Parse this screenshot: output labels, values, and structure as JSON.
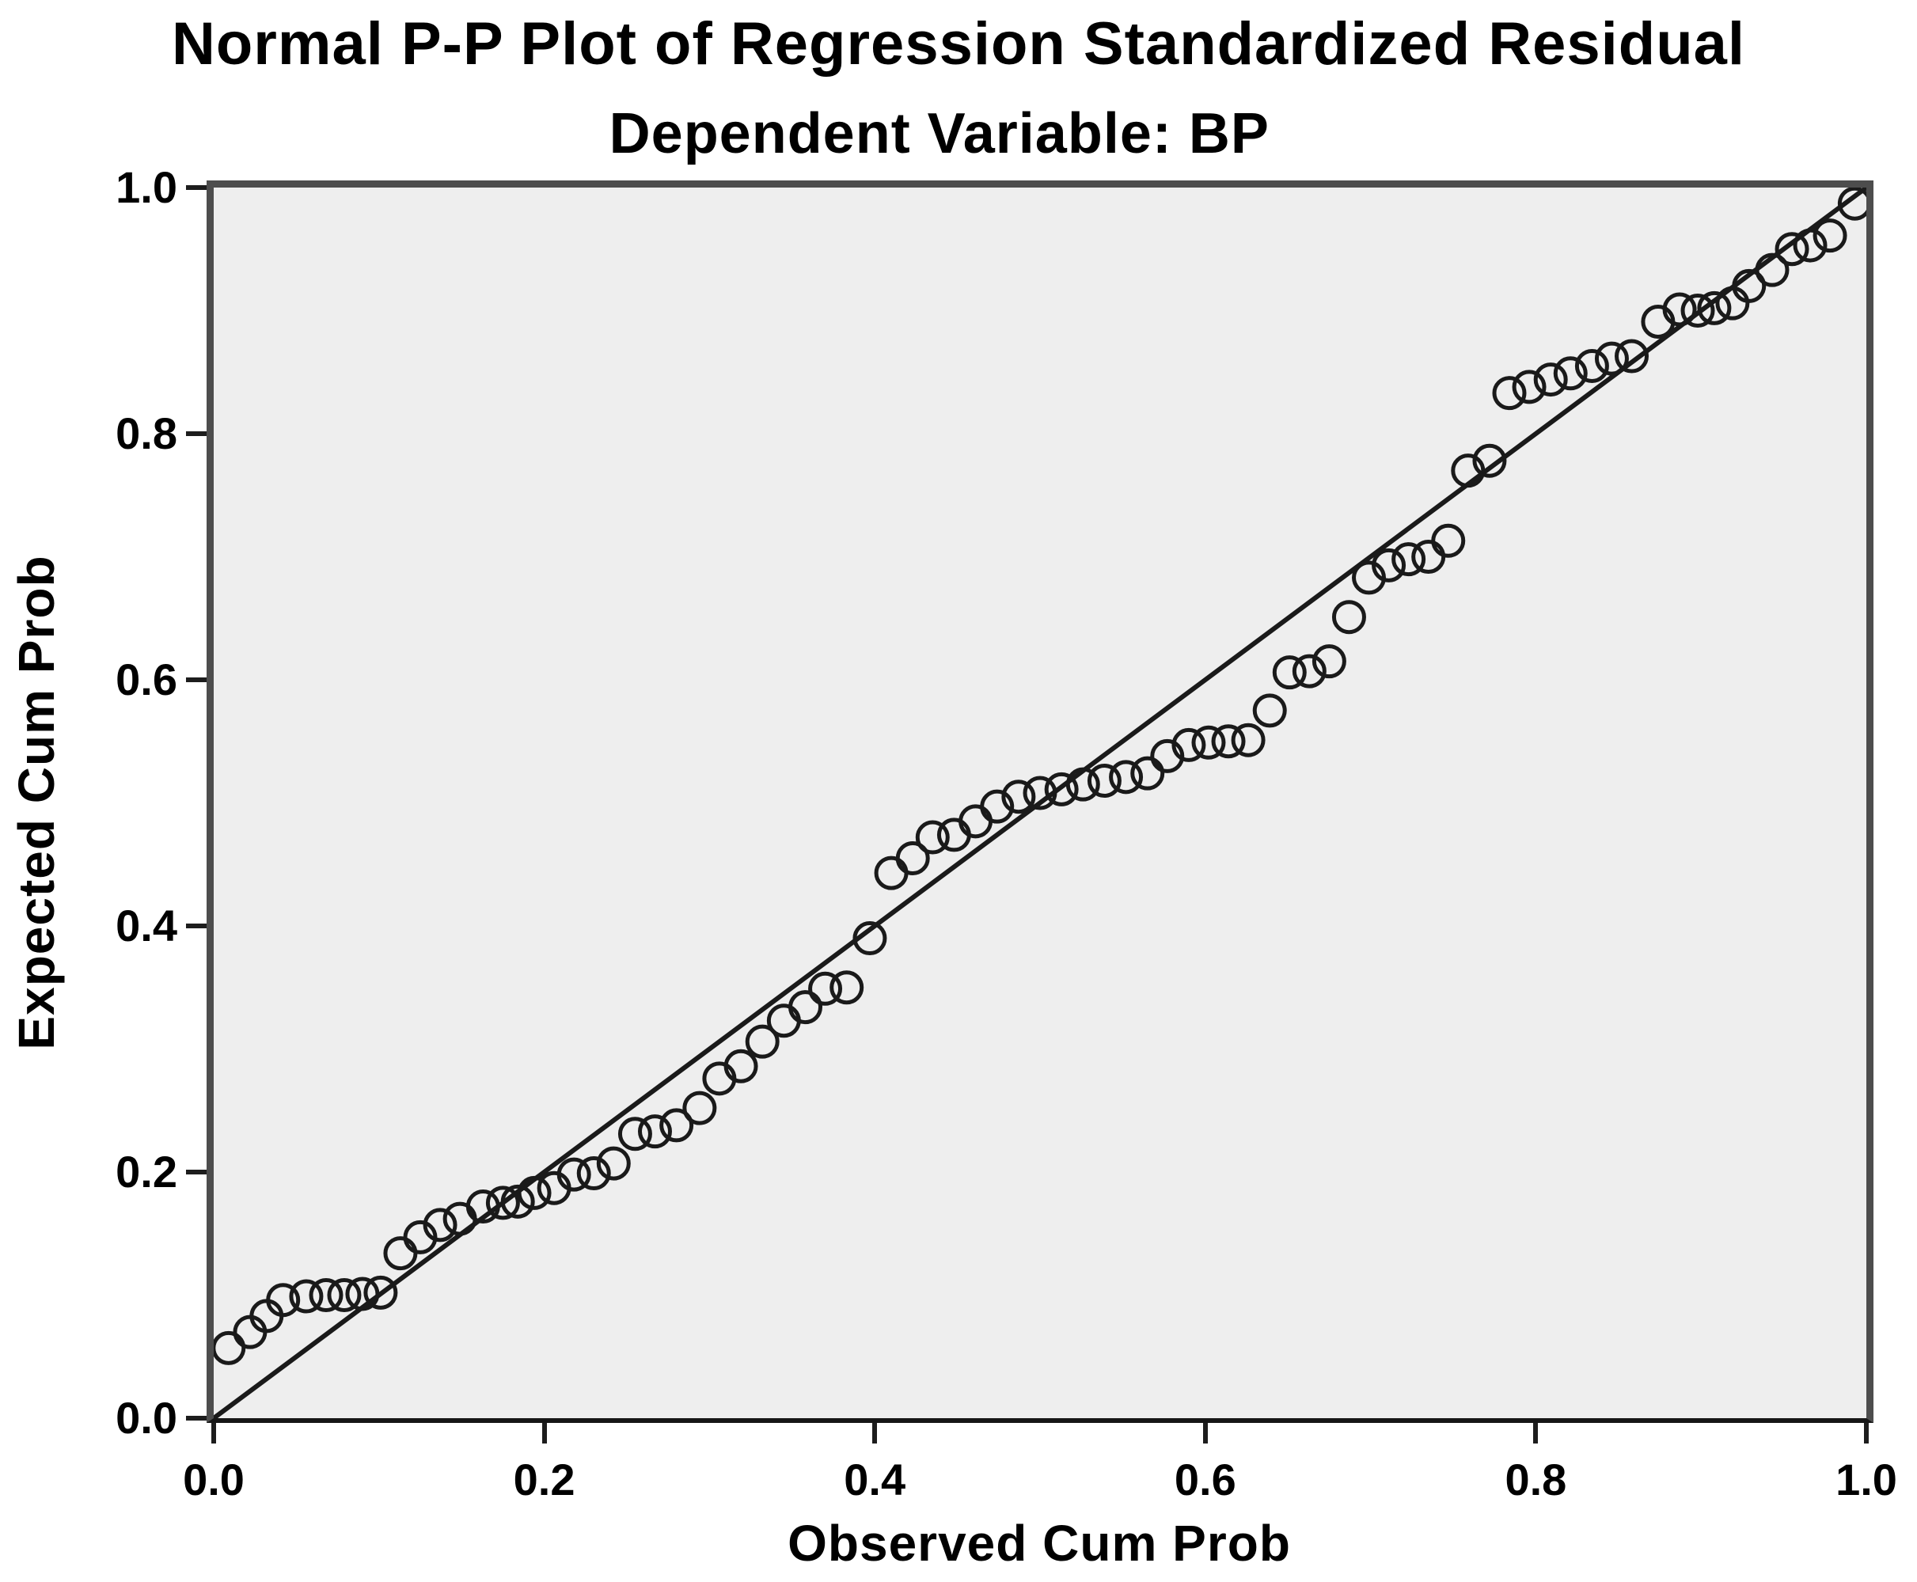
{
  "chart_data": {
    "type": "scatter",
    "title": "Normal P-P Plot of Regression Standardized Residual",
    "subtitle": "Dependent Variable: BP",
    "xlabel": "Observed Cum Prob",
    "ylabel": "Expected Cum Prob",
    "xlim": [
      0.0,
      1.0
    ],
    "ylim": [
      0.0,
      1.0
    ],
    "x_ticks": [
      0.0,
      0.2,
      0.4,
      0.6,
      0.8,
      1.0
    ],
    "y_ticks": [
      0.0,
      0.2,
      0.4,
      0.6,
      0.8,
      1.0
    ],
    "grid": false,
    "legend": null,
    "marker": {
      "shape": "open-circle",
      "radius_px": 19,
      "stroke_px": 5
    },
    "reference_line": {
      "from": [
        0.0,
        0.0
      ],
      "to": [
        1.0,
        1.0
      ]
    },
    "colors": {
      "plot_background": "#eeeeee",
      "frame": "#4d4d4d",
      "marker": "#1a1a1a",
      "reference_line": "#1a1a1a",
      "text": "#000000"
    },
    "points": [
      [
        0.009,
        0.057
      ],
      [
        0.022,
        0.07
      ],
      [
        0.032,
        0.083
      ],
      [
        0.042,
        0.096
      ],
      [
        0.056,
        0.099
      ],
      [
        0.068,
        0.1
      ],
      [
        0.079,
        0.1
      ],
      [
        0.09,
        0.101
      ],
      [
        0.101,
        0.102
      ],
      [
        0.113,
        0.134
      ],
      [
        0.125,
        0.147
      ],
      [
        0.137,
        0.157
      ],
      [
        0.149,
        0.162
      ],
      [
        0.163,
        0.172
      ],
      [
        0.175,
        0.175
      ],
      [
        0.184,
        0.176
      ],
      [
        0.194,
        0.183
      ],
      [
        0.206,
        0.187
      ],
      [
        0.218,
        0.198
      ],
      [
        0.23,
        0.199
      ],
      [
        0.242,
        0.207
      ],
      [
        0.255,
        0.231
      ],
      [
        0.267,
        0.233
      ],
      [
        0.28,
        0.238
      ],
      [
        0.294,
        0.252
      ],
      [
        0.306,
        0.276
      ],
      [
        0.319,
        0.286
      ],
      [
        0.332,
        0.306
      ],
      [
        0.345,
        0.323
      ],
      [
        0.358,
        0.334
      ],
      [
        0.37,
        0.349
      ],
      [
        0.383,
        0.35
      ],
      [
        0.397,
        0.39
      ],
      [
        0.41,
        0.443
      ],
      [
        0.423,
        0.455
      ],
      [
        0.435,
        0.472
      ],
      [
        0.448,
        0.474
      ],
      [
        0.461,
        0.485
      ],
      [
        0.474,
        0.497
      ],
      [
        0.487,
        0.505
      ],
      [
        0.5,
        0.508
      ],
      [
        0.513,
        0.511
      ],
      [
        0.526,
        0.515
      ],
      [
        0.539,
        0.518
      ],
      [
        0.552,
        0.521
      ],
      [
        0.565,
        0.524
      ],
      [
        0.577,
        0.538
      ],
      [
        0.59,
        0.547
      ],
      [
        0.602,
        0.549
      ],
      [
        0.614,
        0.55
      ],
      [
        0.626,
        0.551
      ],
      [
        0.639,
        0.575
      ],
      [
        0.651,
        0.606
      ],
      [
        0.663,
        0.607
      ],
      [
        0.675,
        0.615
      ],
      [
        0.687,
        0.651
      ],
      [
        0.699,
        0.683
      ],
      [
        0.711,
        0.693
      ],
      [
        0.723,
        0.698
      ],
      [
        0.735,
        0.7
      ],
      [
        0.747,
        0.713
      ],
      [
        0.759,
        0.77
      ],
      [
        0.772,
        0.778
      ],
      [
        0.784,
        0.833
      ],
      [
        0.796,
        0.838
      ],
      [
        0.809,
        0.844
      ],
      [
        0.821,
        0.849
      ],
      [
        0.834,
        0.855
      ],
      [
        0.846,
        0.861
      ],
      [
        0.858,
        0.863
      ],
      [
        0.874,
        0.891
      ],
      [
        0.887,
        0.901
      ],
      [
        0.898,
        0.9
      ],
      [
        0.908,
        0.902
      ],
      [
        0.919,
        0.906
      ],
      [
        0.929,
        0.92
      ],
      [
        0.943,
        0.933
      ],
      [
        0.955,
        0.95
      ],
      [
        0.966,
        0.953
      ],
      [
        0.978,
        0.961
      ],
      [
        0.993,
        0.987
      ]
    ]
  }
}
